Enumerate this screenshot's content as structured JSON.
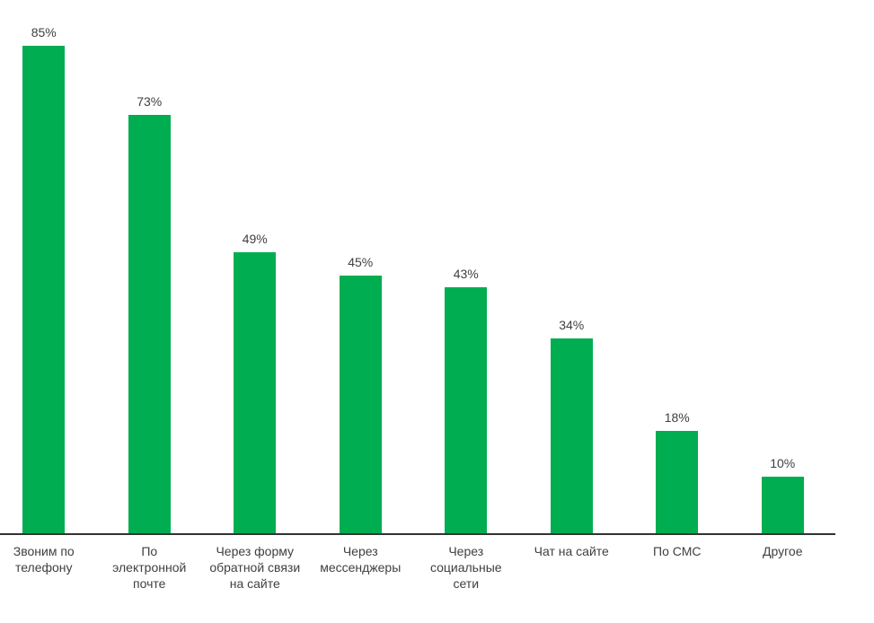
{
  "chart_data": {
    "type": "bar",
    "title": "",
    "xlabel": "",
    "ylabel": "",
    "categories": [
      "Звоним по телефону",
      "По электронной почте",
      "Через форму обратной связи на сайте",
      "Через мессенджеры",
      "Через социальные сети",
      "Чат на сайте",
      "По СМС",
      "Другое"
    ],
    "categories_display": [
      "Звоним по\nтелефону",
      "По\nэлектронной\nпочте",
      "Через форму\nобратной связи\nна сайте",
      "Через\nмессенджеры",
      "Через\nсоциальные\nсети",
      "Чат на сайте",
      "По СМС",
      "Другое"
    ],
    "values": [
      85,
      73,
      49,
      45,
      43,
      34,
      18,
      10
    ],
    "value_labels": [
      "85%",
      "73%",
      "49%",
      "45%",
      "43%",
      "34%",
      "18%",
      "10%"
    ],
    "ylim": [
      0,
      90
    ],
    "grid": false,
    "legend": false,
    "bar_color": "#00AD50",
    "axis_color": "#333333",
    "label_color": "#404040"
  }
}
